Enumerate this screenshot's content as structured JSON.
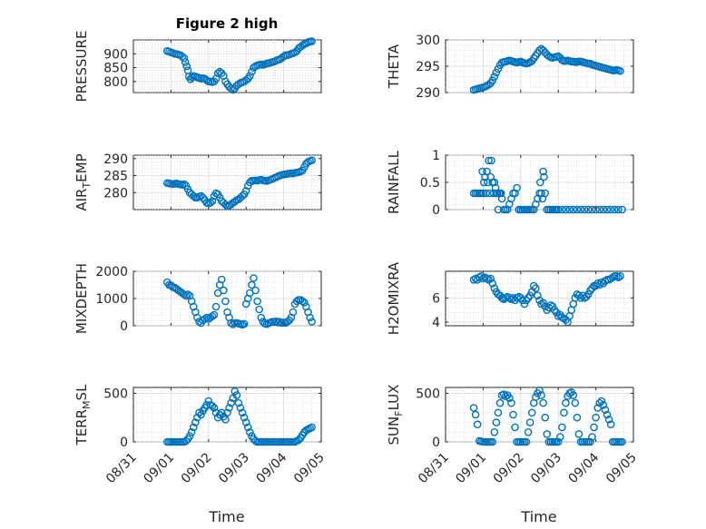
{
  "figure": {
    "title": "Figure 2 high",
    "xlabel": "Time",
    "marker_color": "#0072bd"
  },
  "chart_data": [
    {
      "type": "scatter",
      "title": "Figure 2 high",
      "ylabel": "PRESSURE",
      "ylabel_sub": "",
      "xlim": [
        0,
        5
      ],
      "ylim": [
        760,
        950
      ],
      "yticks": [
        800,
        850,
        900
      ],
      "xticks": [],
      "grid": true,
      "x": [
        0.9,
        0.95,
        1.0,
        1.05,
        1.1,
        1.15,
        1.2,
        1.25,
        1.3,
        1.35,
        1.38,
        1.42,
        1.45,
        1.48,
        1.52,
        1.56,
        1.6,
        1.65,
        1.7,
        1.75,
        1.8,
        1.85,
        1.9,
        1.95,
        2.0,
        2.05,
        2.1,
        2.15,
        2.2,
        2.25,
        2.3,
        2.35,
        2.4,
        2.45,
        2.5,
        2.55,
        2.6,
        2.65,
        2.7,
        2.75,
        2.8,
        2.85,
        2.9,
        2.95,
        3.0,
        3.05,
        3.1,
        3.15,
        3.2,
        3.25,
        3.3,
        3.35,
        3.4,
        3.45,
        3.5,
        3.55,
        3.6,
        3.65,
        3.7,
        3.75,
        3.8,
        3.85,
        3.9,
        3.95,
        4.0,
        4.05,
        4.1,
        4.15,
        4.2,
        4.25,
        4.3,
        4.35,
        4.4,
        4.45,
        4.5,
        4.55,
        4.6,
        4.65,
        4.7,
        4.75
      ],
      "y": [
        910,
        908,
        905,
        903,
        900,
        899,
        897,
        895,
        890,
        884,
        870,
        855,
        840,
        818,
        808,
        815,
        820,
        818,
        815,
        813,
        810,
        812,
        810,
        805,
        800,
        800,
        798,
        800,
        810,
        830,
        835,
        830,
        820,
        800,
        790,
        780,
        775,
        770,
        775,
        785,
        790,
        795,
        797,
        800,
        805,
        810,
        820,
        835,
        850,
        855,
        858,
        860,
        862,
        860,
        862,
        865,
        866,
        868,
        870,
        872,
        875,
        878,
        880,
        885,
        890,
        895,
        895,
        897,
        900,
        902,
        905,
        910,
        920,
        925,
        930,
        935,
        938,
        942,
        944,
        945
      ]
    },
    {
      "type": "scatter",
      "ylabel": "THETA",
      "ylabel_sub": "",
      "xlim": [
        0,
        5
      ],
      "ylim": [
        290,
        300
      ],
      "yticks": [
        290,
        295,
        300
      ],
      "xticks": [],
      "grid": true,
      "x": [
        0.75,
        0.8,
        0.85,
        0.9,
        0.95,
        1.0,
        1.05,
        1.1,
        1.15,
        1.2,
        1.25,
        1.3,
        1.35,
        1.4,
        1.45,
        1.5,
        1.55,
        1.6,
        1.65,
        1.7,
        1.75,
        1.8,
        1.85,
        1.9,
        1.95,
        2.0,
        2.05,
        2.1,
        2.15,
        2.2,
        2.25,
        2.3,
        2.35,
        2.4,
        2.45,
        2.5,
        2.55,
        2.6,
        2.65,
        2.7,
        2.75,
        2.8,
        2.85,
        2.9,
        2.95,
        3.0,
        3.05,
        3.1,
        3.15,
        3.2,
        3.25,
        3.3,
        3.35,
        3.4,
        3.45,
        3.5,
        3.55,
        3.6,
        3.65,
        3.7,
        3.75,
        3.8,
        3.85,
        3.9,
        3.95,
        4.0,
        4.05,
        4.1,
        4.15,
        4.2,
        4.25,
        4.3,
        4.35,
        4.4,
        4.45,
        4.5,
        4.55,
        4.6,
        4.65
      ],
      "y": [
        290.5,
        290.6,
        290.7,
        290.8,
        290.9,
        291.0,
        291.1,
        291.3,
        291.5,
        291.8,
        292.3,
        293.0,
        293.8,
        294.5,
        295.2,
        295.7,
        295.8,
        295.9,
        296.0,
        296.1,
        296.0,
        295.9,
        295.8,
        295.7,
        295.8,
        295.9,
        295.7,
        295.6,
        295.5,
        295.6,
        295.8,
        296.0,
        296.5,
        297.0,
        297.5,
        298.0,
        298.3,
        298.0,
        297.6,
        297.2,
        296.9,
        296.7,
        296.6,
        296.7,
        296.8,
        296.9,
        296.6,
        296.2,
        296.0,
        296.0,
        296.1,
        296.0,
        295.9,
        295.9,
        295.8,
        295.8,
        295.9,
        295.9,
        295.8,
        295.7,
        295.6,
        295.5,
        295.5,
        295.3,
        295.2,
        295.1,
        295.0,
        294.9,
        294.8,
        294.7,
        294.6,
        294.5,
        294.4,
        294.3,
        294.2,
        294.2,
        294.3,
        294.2,
        294.1
      ]
    },
    {
      "type": "scatter",
      "ylabel": "AIR",
      "ylabel_sub": "T",
      "ylabel_tail": "EMP",
      "xlim": [
        0,
        5
      ],
      "ylim": [
        275,
        291
      ],
      "yticks": [
        280,
        285,
        290
      ],
      "xticks": [],
      "grid": true,
      "x": [
        0.9,
        0.95,
        1.0,
        1.05,
        1.1,
        1.15,
        1.2,
        1.25,
        1.3,
        1.35,
        1.4,
        1.45,
        1.5,
        1.55,
        1.6,
        1.65,
        1.7,
        1.75,
        1.8,
        1.85,
        1.9,
        1.95,
        2.0,
        2.05,
        2.1,
        2.15,
        2.2,
        2.25,
        2.3,
        2.35,
        2.4,
        2.45,
        2.5,
        2.55,
        2.6,
        2.65,
        2.7,
        2.75,
        2.8,
        2.85,
        2.9,
        2.95,
        3.0,
        3.05,
        3.1,
        3.15,
        3.2,
        3.25,
        3.3,
        3.35,
        3.4,
        3.45,
        3.5,
        3.55,
        3.6,
        3.65,
        3.7,
        3.75,
        3.8,
        3.85,
        3.9,
        3.95,
        4.0,
        4.05,
        4.1,
        4.15,
        4.2,
        4.25,
        4.3,
        4.35,
        4.4,
        4.45,
        4.5,
        4.55,
        4.6,
        4.65,
        4.7,
        4.75
      ],
      "y": [
        282.8,
        282.7,
        282.6,
        282.5,
        282.6,
        282.7,
        282.5,
        282.4,
        282.3,
        282.5,
        282.0,
        281.0,
        280.0,
        279.5,
        279.0,
        278.5,
        278.5,
        278.8,
        279.0,
        278.5,
        277.8,
        277.0,
        276.8,
        277.0,
        277.5,
        279.0,
        279.8,
        279.5,
        278.5,
        277.5,
        277.0,
        276.5,
        276.0,
        276.2,
        276.5,
        277.0,
        277.3,
        277.8,
        278.0,
        278.5,
        279.0,
        279.5,
        280.5,
        282.0,
        283.0,
        283.5,
        283.5,
        283.6,
        283.5,
        283.7,
        283.8,
        283.6,
        283.5,
        283.4,
        283.6,
        283.8,
        284.0,
        284.3,
        284.5,
        284.8,
        285.0,
        285.2,
        285.3,
        285.4,
        285.5,
        285.6,
        285.7,
        285.6,
        285.8,
        285.9,
        286.0,
        286.2,
        286.5,
        287.5,
        288.5,
        289.0,
        289.3,
        289.5
      ]
    },
    {
      "type": "scatter",
      "ylabel": "RAINFALL",
      "ylabel_sub": "",
      "xlim": [
        0,
        5
      ],
      "ylim": [
        0,
        1
      ],
      "yticks": [
        0,
        0.5,
        1
      ],
      "ytick_labels": [
        "0",
        "0.5",
        "1"
      ],
      "xticks": [],
      "grid": true,
      "x": [
        0.75,
        0.8,
        0.85,
        0.9,
        0.92,
        0.95,
        0.98,
        1.0,
        1.02,
        1.05,
        1.08,
        1.1,
        1.12,
        1.15,
        1.18,
        1.2,
        1.22,
        1.25,
        1.28,
        1.3,
        1.33,
        1.35,
        1.38,
        1.4,
        1.43,
        1.45,
        1.48,
        1.5,
        1.55,
        1.6,
        1.65,
        1.7,
        1.75,
        1.8,
        1.85,
        1.9,
        1.95,
        2.0,
        2.05,
        2.1,
        2.15,
        2.2,
        2.25,
        2.3,
        2.35,
        2.4,
        2.45,
        2.5,
        2.52,
        2.55,
        2.58,
        2.6,
        2.62,
        2.65,
        2.7,
        2.75,
        2.8,
        2.85,
        2.9,
        2.95,
        3.0,
        3.1,
        3.2,
        3.3,
        3.4,
        3.5,
        3.6,
        3.7,
        3.8,
        3.9,
        4.0,
        4.1,
        4.2,
        4.3,
        4.4,
        4.5,
        4.6,
        4.7
      ],
      "y": [
        0.3,
        0.3,
        0.3,
        0.3,
        0.3,
        0.3,
        0.7,
        0.3,
        0.5,
        0.6,
        0.3,
        0.7,
        0.5,
        0.9,
        0.3,
        0.6,
        0.9,
        0.5,
        0.3,
        0.5,
        0.4,
        0.3,
        0.3,
        0,
        0.3,
        0.3,
        0.3,
        0.2,
        0,
        0,
        0,
        0.1,
        0.2,
        0.3,
        0.3,
        0.4,
        0,
        0,
        0,
        0,
        0,
        0,
        0,
        0,
        0,
        0.1,
        0.2,
        0.3,
        0.5,
        0.3,
        0.2,
        0.7,
        0.6,
        0.3,
        0,
        0,
        0,
        0,
        0,
        0,
        0,
        0,
        0,
        0,
        0,
        0,
        0,
        0,
        0,
        0,
        0,
        0,
        0,
        0,
        0,
        0,
        0,
        0
      ]
    },
    {
      "type": "scatter",
      "ylabel": "MIXDEPTH",
      "ylabel_sub": "",
      "xlim": [
        0,
        5
      ],
      "ylim": [
        0,
        2000
      ],
      "yticks": [
        0,
        1000,
        2000
      ],
      "xticks": [],
      "grid": true,
      "x": [
        0.9,
        0.95,
        1.0,
        1.05,
        1.1,
        1.15,
        1.2,
        1.25,
        1.3,
        1.35,
        1.4,
        1.45,
        1.5,
        1.55,
        1.6,
        1.65,
        1.7,
        1.75,
        1.8,
        1.85,
        1.9,
        1.95,
        2.0,
        2.05,
        2.1,
        2.15,
        2.2,
        2.25,
        2.3,
        2.35,
        2.4,
        2.45,
        2.5,
        2.55,
        2.6,
        2.65,
        2.7,
        2.75,
        2.8,
        2.85,
        2.9,
        2.95,
        3.0,
        3.05,
        3.1,
        3.15,
        3.2,
        3.25,
        3.3,
        3.35,
        3.4,
        3.45,
        3.5,
        3.55,
        3.6,
        3.65,
        3.7,
        3.75,
        3.8,
        3.85,
        3.9,
        3.95,
        4.0,
        4.05,
        4.1,
        4.15,
        4.2,
        4.25,
        4.3,
        4.35,
        4.4,
        4.45,
        4.5,
        4.55,
        4.6,
        4.65,
        4.7,
        4.75
      ],
      "y": [
        1600,
        1500,
        1480,
        1420,
        1400,
        1350,
        1300,
        1250,
        1200,
        1150,
        1100,
        1150,
        1100,
        900,
        700,
        500,
        300,
        150,
        100,
        200,
        250,
        300,
        250,
        300,
        350,
        400,
        700,
        1200,
        1500,
        1700,
        1300,
        900,
        500,
        300,
        100,
        50,
        100,
        100,
        80,
        60,
        40,
        70,
        800,
        1000,
        1200,
        1500,
        1750,
        1300,
        900,
        600,
        300,
        150,
        80,
        60,
        100,
        120,
        150,
        140,
        160,
        120,
        150,
        100,
        120,
        100,
        150,
        200,
        300,
        500,
        800,
        900,
        950,
        950,
        900,
        850,
        700,
        500,
        300,
        150
      ]
    },
    {
      "type": "scatter",
      "ylabel": "H2OMIXRA",
      "ylabel_sub": "",
      "xlim": [
        0,
        5
      ],
      "ylim": [
        3.7,
        8.2
      ],
      "yticks": [
        4,
        6
      ],
      "xticks": [],
      "grid": true,
      "x": [
        0.75,
        0.8,
        0.85,
        0.9,
        0.95,
        1.0,
        1.05,
        1.1,
        1.15,
        1.2,
        1.25,
        1.3,
        1.35,
        1.4,
        1.45,
        1.5,
        1.55,
        1.6,
        1.65,
        1.7,
        1.75,
        1.8,
        1.85,
        1.9,
        1.95,
        2.0,
        2.05,
        2.1,
        2.15,
        2.2,
        2.25,
        2.3,
        2.35,
        2.4,
        2.45,
        2.5,
        2.55,
        2.6,
        2.65,
        2.7,
        2.75,
        2.8,
        2.85,
        2.9,
        2.95,
        3.0,
        3.05,
        3.1,
        3.15,
        3.2,
        3.25,
        3.3,
        3.35,
        3.4,
        3.45,
        3.5,
        3.55,
        3.6,
        3.65,
        3.7,
        3.75,
        3.8,
        3.85,
        3.9,
        3.95,
        4.0,
        4.05,
        4.1,
        4.15,
        4.2,
        4.25,
        4.3,
        4.35,
        4.4,
        4.45,
        4.5,
        4.55,
        4.6,
        4.65
      ],
      "y": [
        7.5,
        7.6,
        7.5,
        7.7,
        7.8,
        7.6,
        7.7,
        7.6,
        7.5,
        7.6,
        7.2,
        6.8,
        6.5,
        6.3,
        6.2,
        6.0,
        5.9,
        6.0,
        6.1,
        6.0,
        5.9,
        6.0,
        5.8,
        6.0,
        6.1,
        6.0,
        5.8,
        5.5,
        5.8,
        6.0,
        6.2,
        6.5,
        7.0,
        6.8,
        6.2,
        5.8,
        5.5,
        5.6,
        5.3,
        5.0,
        5.2,
        5.4,
        5.3,
        5.0,
        4.8,
        4.5,
        4.6,
        4.4,
        4.3,
        4.2,
        4.0,
        4.5,
        5.0,
        5.5,
        6.0,
        6.3,
        6.2,
        6.0,
        6.2,
        6.0,
        6.1,
        6.3,
        6.6,
        6.8,
        7.0,
        7.0,
        7.2,
        7.1,
        7.3,
        7.2,
        7.4,
        7.5,
        7.5,
        7.6,
        7.7,
        7.8,
        7.8,
        7.7,
        7.8
      ]
    },
    {
      "type": "scatter",
      "ylabel": "TERR",
      "ylabel_sub": "M",
      "ylabel_tail": "SL",
      "xlim": [
        0,
        5
      ],
      "ylim": [
        0,
        560
      ],
      "yticks": [
        0,
        500
      ],
      "xticks": [
        "08/31",
        "09/01",
        "09/02",
        "09/03",
        "09/04",
        "09/05"
      ],
      "grid": true,
      "x": [
        0.9,
        0.95,
        1.0,
        1.05,
        1.1,
        1.15,
        1.2,
        1.25,
        1.3,
        1.35,
        1.4,
        1.45,
        1.5,
        1.55,
        1.6,
        1.65,
        1.7,
        1.75,
        1.8,
        1.85,
        1.9,
        1.95,
        2.0,
        2.05,
        2.1,
        2.15,
        2.2,
        2.25,
        2.3,
        2.35,
        2.4,
        2.45,
        2.5,
        2.55,
        2.6,
        2.65,
        2.7,
        2.75,
        2.8,
        2.85,
        2.9,
        2.95,
        3.0,
        3.05,
        3.1,
        3.15,
        3.2,
        3.25,
        3.3,
        3.35,
        3.4,
        3.45,
        3.5,
        3.55,
        3.6,
        3.65,
        3.7,
        3.75,
        3.8,
        3.85,
        3.9,
        3.95,
        4.0,
        4.05,
        4.1,
        4.15,
        4.2,
        4.25,
        4.3,
        4.35,
        4.4,
        4.45,
        4.5,
        4.55,
        4.6,
        4.65,
        4.7,
        4.75
      ],
      "y": [
        0,
        0,
        0,
        0,
        0,
        0,
        0,
        0,
        0,
        0,
        10,
        30,
        60,
        100,
        150,
        200,
        250,
        300,
        280,
        320,
        350,
        380,
        420,
        380,
        370,
        350,
        300,
        250,
        280,
        300,
        260,
        230,
        300,
        350,
        400,
        450,
        520,
        480,
        400,
        350,
        300,
        250,
        200,
        150,
        100,
        60,
        30,
        10,
        0,
        0,
        0,
        0,
        0,
        0,
        0,
        0,
        0,
        0,
        0,
        0,
        0,
        0,
        0,
        0,
        0,
        0,
        0,
        0,
        0,
        10,
        20,
        40,
        70,
        100,
        120,
        130,
        140,
        150
      ]
    },
    {
      "type": "scatter",
      "ylabel": "SUN",
      "ylabel_sub": "F",
      "ylabel_tail": "LUX",
      "xlim": [
        0,
        5
      ],
      "ylim": [
        0,
        560
      ],
      "yticks": [
        0,
        500
      ],
      "xticks": [
        "08/31",
        "09/01",
        "09/02",
        "09/03",
        "09/04",
        "09/05"
      ],
      "grid": true,
      "x": [
        0.75,
        0.8,
        0.85,
        0.9,
        0.95,
        1.0,
        1.05,
        1.1,
        1.15,
        1.2,
        1.25,
        1.3,
        1.35,
        1.4,
        1.45,
        1.5,
        1.55,
        1.6,
        1.65,
        1.7,
        1.75,
        1.8,
        1.85,
        1.9,
        1.95,
        2.0,
        2.05,
        2.1,
        2.15,
        2.2,
        2.25,
        2.3,
        2.35,
        2.4,
        2.45,
        2.5,
        2.55,
        2.6,
        2.65,
        2.7,
        2.75,
        2.8,
        2.85,
        2.9,
        2.95,
        3.0,
        3.05,
        3.1,
        3.15,
        3.2,
        3.25,
        3.3,
        3.35,
        3.4,
        3.45,
        3.5,
        3.55,
        3.6,
        3.65,
        3.7,
        3.75,
        3.8,
        3.85,
        3.9,
        3.95,
        4.0,
        4.05,
        4.1,
        4.15,
        4.2,
        4.25,
        4.3,
        4.35,
        4.4,
        4.45,
        4.5,
        4.55,
        4.6,
        4.65,
        4.7
      ],
      "y": [
        350,
        280,
        180,
        10,
        5,
        0,
        0,
        0,
        0,
        0,
        0,
        100,
        200,
        300,
        400,
        480,
        490,
        470,
        480,
        450,
        400,
        280,
        150,
        0,
        0,
        0,
        0,
        0,
        0,
        100,
        200,
        300,
        400,
        460,
        500,
        530,
        480,
        400,
        250,
        80,
        0,
        0,
        0,
        0,
        0,
        0,
        50,
        150,
        300,
        400,
        470,
        500,
        510,
        480,
        400,
        250,
        80,
        0,
        0,
        0,
        0,
        0,
        0,
        50,
        150,
        250,
        350,
        400,
        420,
        380,
        330,
        280,
        230,
        180,
        0,
        0,
        0,
        0,
        0,
        0
      ]
    }
  ]
}
